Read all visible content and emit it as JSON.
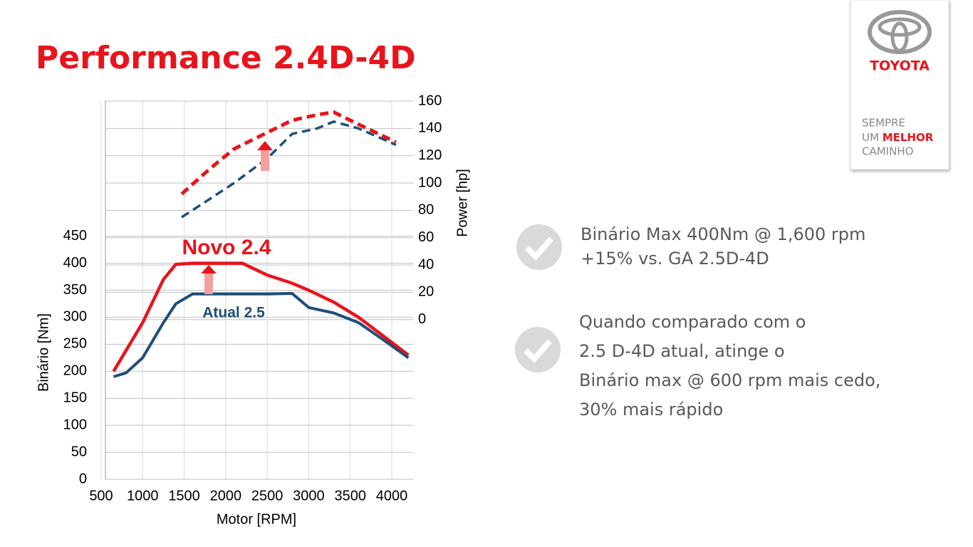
{
  "title": "Performance 2.4D-4D",
  "logo": {
    "brand": "TOYOTA",
    "tagline": [
      "SEMPRE",
      "UM",
      "MELHOR",
      "CAMINHO"
    ]
  },
  "bullets": [
    [
      "Binário Max  400Nm @ 1,600 rpm",
      "+15% vs. GA 2.5D-4D"
    ],
    [
      "Quando comparado com o",
      "2.5 D-4D atual, atinge o",
      "Binário max @ 600 rpm mais cedo,",
      "30% mais rápido"
    ]
  ],
  "chart_data": {
    "type": "line",
    "xlabel": "Motor [RPM]",
    "ylabel": "Binário [Nm]",
    "y2label": "Power [hp]",
    "xlim": [
      500,
      4250
    ],
    "xticks": [
      500,
      1000,
      1500,
      2000,
      2500,
      3000,
      3500,
      4000
    ],
    "ylim": [
      0,
      700
    ],
    "yticks": [
      0,
      50,
      100,
      150,
      200,
      250,
      300,
      350,
      400,
      450
    ],
    "y2lim": [
      -117,
      160
    ],
    "y2ticks": [
      0,
      20,
      40,
      60,
      80,
      100,
      120,
      140,
      160
    ],
    "grid": true,
    "series": [
      {
        "name": "Novo 2.4",
        "color": "#e8141b",
        "x": [
          650,
          1000,
          1250,
          1400,
          1600,
          2000,
          2200,
          2500,
          2800,
          3000,
          3300,
          3600,
          3900,
          4200
        ],
        "values": [
          200,
          290,
          370,
          398,
          400,
          400,
          400,
          378,
          363,
          350,
          328,
          300,
          265,
          230
        ]
      },
      {
        "name": "Atual 2.5",
        "color": "#1f4e79",
        "x": [
          650,
          800,
          1000,
          1250,
          1400,
          1600,
          2000,
          2500,
          2800,
          3000,
          3300,
          3600,
          3900,
          4200
        ],
        "values": [
          190,
          197,
          225,
          290,
          325,
          343,
          343,
          343,
          344,
          318,
          308,
          290,
          258,
          225
        ]
      },
      {
        "color": "#e8141b",
        "axis": "y2",
        "line_style": "dashed",
        "x": [
          1470,
          1800,
          2100,
          2500,
          2800,
          3100,
          3300,
          3600,
          4050
        ],
        "values": [
          92,
          110,
          125,
          137,
          146,
          150,
          152,
          143,
          130
        ]
      },
      {
        "color": "#1f4e79",
        "axis": "y2",
        "line_style": "dashed",
        "x": [
          1470,
          1800,
          2100,
          2500,
          2800,
          3100,
          3300,
          3600,
          4050
        ],
        "values": [
          75,
          88,
          100,
          118,
          136,
          140,
          145,
          140,
          128
        ]
      }
    ]
  }
}
